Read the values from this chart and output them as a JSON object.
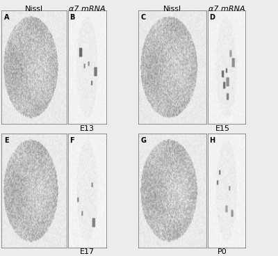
{
  "col_headers": [
    "Nissl",
    "α7 mRNA",
    "Nissl",
    "α7 mRNA"
  ],
  "panel_labels": [
    "A",
    "B",
    "C",
    "D",
    "E",
    "F",
    "G",
    "H"
  ],
  "stage_labels": [
    "E13",
    "E15",
    "E17",
    "P0"
  ],
  "figure_bg": "#f5f5f5",
  "outer_bg": "#e8e8e8",
  "label_fontsize": 7,
  "header_fontsize": 8,
  "stage_fontsize": 8,
  "header_normal_style": "normal",
  "header_italic_style": "italic"
}
